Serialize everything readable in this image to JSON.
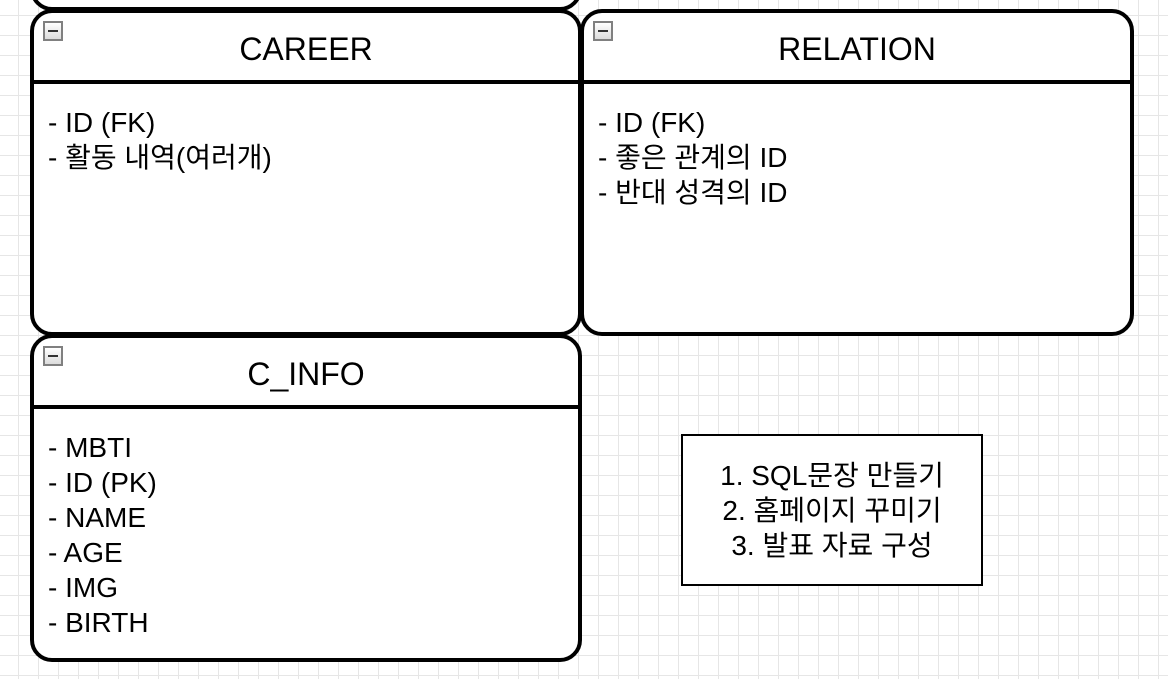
{
  "entities": [
    {
      "title": "CAREER",
      "fields": [
        "- ID (FK)",
        "- 활동 내역(여러개)"
      ]
    },
    {
      "title": "RELATION",
      "fields": [
        "- ID (FK)",
        "- 좋은 관계의 ID",
        "- 반대 성격의 ID"
      ]
    },
    {
      "title": "C_INFO",
      "fields": [
        "- MBTI",
        "- ID (PK)",
        "- NAME",
        "- AGE",
        "- IMG",
        "- BIRTH"
      ]
    }
  ],
  "note": {
    "lines": [
      "1. SQL문장 만들기",
      "2. 홈페이지 꾸미기",
      "3. 발표 자료 구성"
    ]
  },
  "icons": {
    "collapse": "collapse-minus-icon"
  }
}
